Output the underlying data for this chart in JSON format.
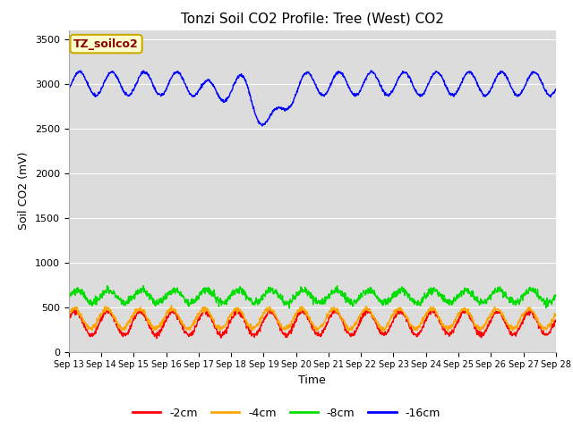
{
  "title": "Tonzi Soil CO2 Profile: Tree (West) CO2",
  "ylabel": "Soil CO2 (mV)",
  "xlabel": "Time",
  "legend_label": "TZ_soilco2",
  "series_labels": [
    "-2cm",
    "-4cm",
    "-8cm",
    "-16cm"
  ],
  "series_colors": [
    "#ff0000",
    "#ffa500",
    "#00dd00",
    "#0000ff"
  ],
  "ylim": [
    0,
    3600
  ],
  "yticks": [
    0,
    500,
    1000,
    1500,
    2000,
    2500,
    3000,
    3500
  ],
  "plot_bg_color": "#dcdcdc",
  "fig_background": "#ffffff",
  "n_points": 1500,
  "title_fontsize": 11,
  "axis_label_fontsize": 9,
  "tick_fontsize": 8,
  "legend_fontsize": 9,
  "line_width": 1.0
}
